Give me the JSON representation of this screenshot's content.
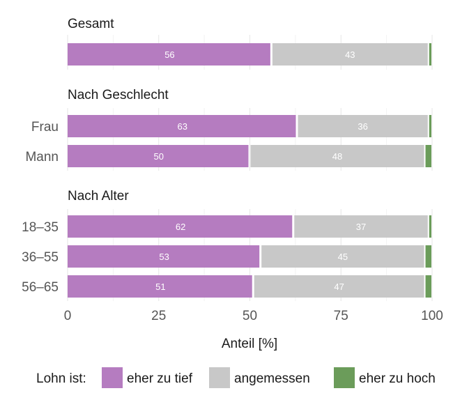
{
  "chart_data": {
    "type": "bar",
    "orientation": "horizontal",
    "stacked": true,
    "xlabel": "Anteil [%]",
    "xlim": [
      0,
      100
    ],
    "xticks": [
      0,
      25,
      50,
      75,
      100
    ],
    "grid": true,
    "legend_title": "Lohn ist:",
    "legend_position": "bottom",
    "series": [
      {
        "name": "eher zu tief",
        "color": "#b57cc0"
      },
      {
        "name": "angemessen",
        "color": "#c8c8c8"
      },
      {
        "name": "eher zu hoch",
        "color": "#6b9c5a"
      }
    ],
    "groups": [
      {
        "title": "Gesamt",
        "rows": [
          {
            "label": "",
            "values": [
              56,
              43,
              1
            ]
          }
        ]
      },
      {
        "title": "Nach Geschlecht",
        "rows": [
          {
            "label": "Frau",
            "values": [
              63,
              36,
              1
            ]
          },
          {
            "label": "Mann",
            "values": [
              50,
              48,
              2
            ]
          }
        ]
      },
      {
        "title": "Nach Alter",
        "rows": [
          {
            "label": "18–35",
            "values": [
              62,
              37,
              1
            ]
          },
          {
            "label": "36–55",
            "values": [
              53,
              45,
              2
            ]
          },
          {
            "label": "56–65",
            "values": [
              51,
              47,
              2
            ]
          }
        ]
      }
    ]
  }
}
